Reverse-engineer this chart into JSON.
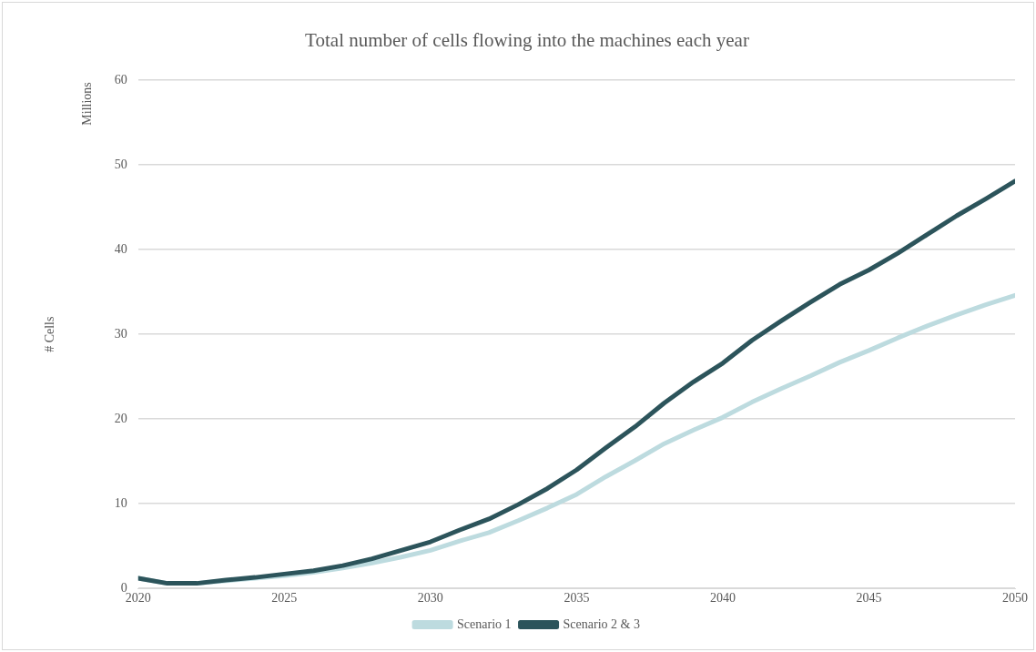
{
  "chart_data": {
    "type": "line",
    "title": "Total number of cells flowing into the machines each year",
    "ylabel": "# Cells",
    "annotations": [
      "Millions"
    ],
    "x": [
      2020,
      2021,
      2022,
      2023,
      2024,
      2025,
      2026,
      2027,
      2028,
      2029,
      2030,
      2031,
      2032,
      2033,
      2034,
      2035,
      2036,
      2037,
      2038,
      2039,
      2040,
      2041,
      2042,
      2043,
      2044,
      2045,
      2046,
      2047,
      2048,
      2049,
      2050
    ],
    "series": [
      {
        "name": "Scenario 1",
        "color": "#bddbdf",
        "values": [
          1.2,
          0.6,
          0.6,
          0.9,
          1.2,
          1.5,
          1.9,
          2.4,
          3.0,
          3.7,
          4.5,
          5.6,
          6.6,
          8.0,
          9.5,
          11.1,
          13.2,
          15.1,
          17.1,
          18.7,
          20.2,
          22.0,
          23.6,
          25.1,
          26.7,
          28.1,
          29.6,
          31.0,
          32.3,
          33.5,
          34.6
        ]
      },
      {
        "name": "Scenario 2 & 3",
        "color": "#2c545b",
        "values": [
          1.2,
          0.6,
          0.6,
          1.0,
          1.3,
          1.7,
          2.1,
          2.7,
          3.5,
          4.5,
          5.5,
          6.9,
          8.2,
          9.9,
          11.8,
          14.0,
          16.6,
          19.1,
          21.9,
          24.4,
          26.6,
          29.3,
          31.6,
          33.8,
          35.9,
          37.6,
          39.6,
          41.8,
          44.0,
          46.0,
          48.1
        ]
      }
    ],
    "xlim": [
      2020,
      2050
    ],
    "xticks": [
      2020,
      2025,
      2030,
      2035,
      2040,
      2045,
      2050
    ],
    "ylim": [
      0,
      60
    ],
    "yticks": [
      0,
      10,
      20,
      30,
      40,
      50,
      60
    ],
    "grid": "y",
    "legend": "bottom",
    "marker": "none",
    "line_style": "solid"
  }
}
